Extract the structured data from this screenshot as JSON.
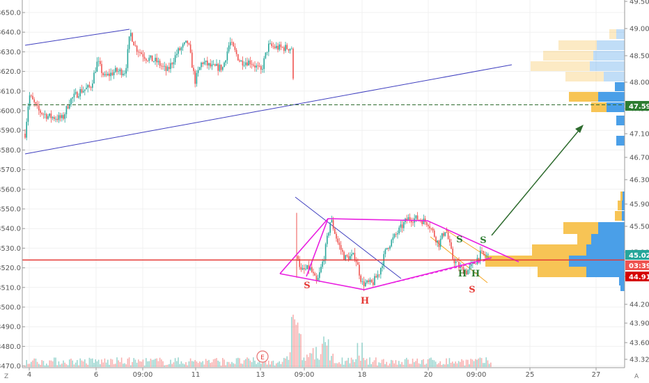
{
  "chart_data": {
    "type": "candlestick",
    "left_axis": {
      "ticks": [
        "8650.0",
        "8640.0",
        "8630.0",
        "8620.0",
        "8610.0",
        "8600.0",
        "8590.0",
        "8580.0",
        "8570.0",
        "8560.0",
        "8550.0",
        "8540.0",
        "8530.0",
        "8520.0",
        "8510.0",
        "8500.0",
        "8490.0",
        "8480.0",
        "8470.0"
      ],
      "range": [
        8469,
        8655
      ]
    },
    "right_axis": {
      "ticks": [
        "49.50",
        "49.00",
        "48.50",
        "48.00",
        "47.50",
        "47.10",
        "46.70",
        "46.30",
        "45.90",
        "45.50",
        "45.10",
        "44.50",
        "44.20",
        "43.90",
        "43.60",
        "43.32"
      ],
      "range": [
        43.2,
        49.6
      ]
    },
    "x_axis": {
      "ticks": [
        "4",
        "6",
        "09:00",
        "11",
        "13",
        "09:00",
        "18",
        "20",
        "09:00",
        "25",
        "27"
      ]
    },
    "price_tags": [
      {
        "label": "47.59",
        "color": "#2e7d32",
        "dashed_level": 8603
      },
      {
        "label": "45.02",
        "color": "#26a69a"
      },
      {
        "label": "03:39",
        "color": "#ef5350"
      },
      {
        "label": "44.91",
        "color": "#d50000"
      }
    ],
    "event_marker": "E",
    "pattern_labels": [
      {
        "text": "S",
        "color": "#e53935"
      },
      {
        "text": "H",
        "color": "#e53935"
      },
      {
        "text": "S",
        "color": "#2e7d32"
      },
      {
        "text": "H",
        "color": "#2e7d32"
      },
      {
        "text": "H",
        "color": "#2e7d32"
      },
      {
        "text": "S",
        "color": "#e53935"
      }
    ],
    "red_level": 8524,
    "colors": {
      "up": "#26a69a",
      "down": "#ef5350",
      "trendline": "#3f3fbf",
      "pattern": "#e91ee0",
      "arrow": "#2e6b2e",
      "red_level": "#e53935",
      "vp_up": "#4a9fe8",
      "vp_down": "#f7c455"
    },
    "corner_labels": {
      "bottom_left": "Z",
      "bottom_right": "A"
    }
  }
}
